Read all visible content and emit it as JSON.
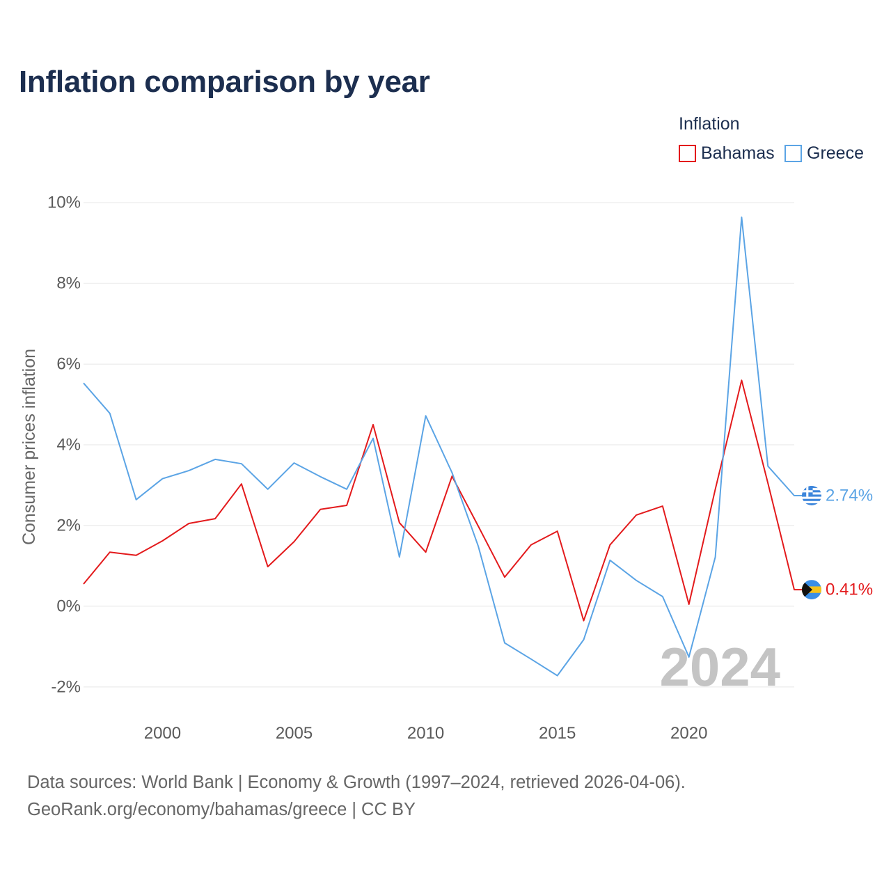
{
  "chart_data": {
    "type": "line",
    "title": "Inflation comparison by year",
    "xlabel": "",
    "ylabel": "Consumer prices inflation",
    "legend_title": "Inflation",
    "highlight_year": "2024",
    "x": [
      1997,
      1998,
      1999,
      2000,
      2001,
      2002,
      2003,
      2004,
      2005,
      2006,
      2007,
      2008,
      2009,
      2010,
      2011,
      2012,
      2013,
      2014,
      2015,
      2016,
      2017,
      2018,
      2019,
      2020,
      2021,
      2022,
      2023,
      2024
    ],
    "xlim": [
      1997,
      2024
    ],
    "ylim": [
      -2.4,
      10.4
    ],
    "xticks": [
      2000,
      2005,
      2010,
      2015,
      2020
    ],
    "xtick_labels": [
      "2000",
      "2005",
      "2010",
      "2015",
      "2020"
    ],
    "yticks": [
      10,
      8,
      6,
      4,
      2,
      0,
      -2
    ],
    "ytick_labels": [
      "10%",
      "8%",
      "6%",
      "4%",
      "2%",
      "0%",
      "-2%"
    ],
    "grid": true,
    "series": [
      {
        "name": "Bahamas",
        "color": "#e31a1c",
        "end_label": "0.41%",
        "values": [
          0.55,
          1.34,
          1.26,
          1.62,
          2.05,
          2.17,
          3.03,
          0.98,
          1.6,
          2.4,
          2.5,
          4.5,
          2.07,
          1.34,
          3.22,
          1.98,
          0.72,
          1.52,
          1.86,
          -0.36,
          1.52,
          2.26,
          2.48,
          0.05,
          2.9,
          5.6,
          3.05,
          0.41
        ]
      },
      {
        "name": "Greece",
        "color": "#5ba4e5",
        "end_label": "2.74%",
        "values": [
          5.53,
          4.78,
          2.64,
          3.16,
          3.36,
          3.64,
          3.53,
          2.9,
          3.55,
          3.21,
          2.9,
          4.16,
          1.22,
          4.72,
          3.31,
          1.48,
          -0.91,
          -1.31,
          -1.72,
          -0.83,
          1.14,
          0.64,
          0.24,
          -1.26,
          1.22,
          9.64,
          3.47,
          2.74
        ]
      }
    ]
  },
  "footer": {
    "sources": "Data sources: World Bank | Economy & Growth (1997–2024, retrieved 2026-04-06).",
    "attribution": "GeoRank.org/economy/bahamas/greece | CC BY"
  }
}
